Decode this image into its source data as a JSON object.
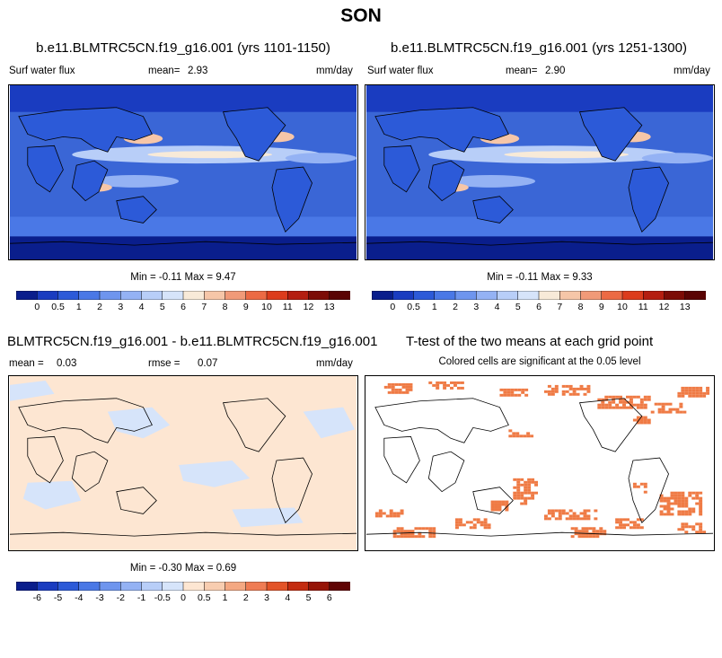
{
  "title": "SON",
  "panels": [
    {
      "title": "b.e11.BLMTRC5CN.f19_g16.001 (yrs 1101-1150)",
      "left_label": "Surf water flux",
      "mean_label": "mean=",
      "mean_value": "2.93",
      "units": "mm/day",
      "minmax": "Min = -0.11 Max = 9.47"
    },
    {
      "title": "b.e11.BLMTRC5CN.f19_g16.001 (yrs 1251-1300)",
      "left_label": "Surf water flux",
      "mean_label": "mean=",
      "mean_value": "2.90",
      "units": "mm/day",
      "minmax": "Min = -0.11 Max = 9.33"
    },
    {
      "title": "BLMTRC5CN.f19_g16.001 - b.e11.BLMTRC5CN.f19_g16.001",
      "mean_label": "mean =",
      "mean_value": "0.03",
      "rmse_label": "rmse =",
      "rmse_value": "0.07",
      "units": "mm/day",
      "minmax": "Min = -0.30 Max = 0.69"
    },
    {
      "title": "T-test of the two means at each grid point",
      "subtitle": "Colored cells are significant at the 0.05 level"
    }
  ],
  "chart_data": [
    {
      "type": "heatmap",
      "title": "b.e11.BLMTRC5CN.f19_g16.001 (yrs 1101-1150)",
      "variable": "Surf water flux",
      "units": "mm/day",
      "mean": 2.93,
      "min": -0.11,
      "max": 9.47,
      "colorbar_levels": [
        0,
        0.5,
        1,
        2,
        3,
        4,
        5,
        6,
        7,
        8,
        9,
        10,
        11,
        12,
        13
      ]
    },
    {
      "type": "heatmap",
      "title": "b.e11.BLMTRC5CN.f19_g16.001 (yrs 1251-1300)",
      "variable": "Surf water flux",
      "units": "mm/day",
      "mean": 2.9,
      "min": -0.11,
      "max": 9.33,
      "colorbar_levels": [
        0,
        0.5,
        1,
        2,
        3,
        4,
        5,
        6,
        7,
        8,
        9,
        10,
        11,
        12,
        13
      ]
    },
    {
      "type": "heatmap",
      "title": "BLMTRC5CN.f19_g16.001 - b.e11.BLMTRC5CN.f19_g16.001",
      "units": "mm/day",
      "mean": 0.03,
      "rmse": 0.07,
      "min": -0.3,
      "max": 0.69,
      "colorbar_levels": [
        -6,
        -5,
        -4,
        -3,
        -2,
        -1,
        -0.5,
        0,
        0.5,
        1,
        2,
        3,
        4,
        5,
        6
      ]
    },
    {
      "type": "heatmap",
      "title": "T-test of the two means at each grid point",
      "subtitle": "Colored cells are significant at the 0.05 level"
    }
  ],
  "colors": {
    "abs_scale": [
      "#0a1e8c",
      "#1a3cc0",
      "#2c5ad8",
      "#4a78e6",
      "#6e95ee",
      "#94b2f4",
      "#b8cef8",
      "#d6e4fa",
      "#f8ead8",
      "#f6c6a8",
      "#f19a78",
      "#ec6a44",
      "#dc3c1c",
      "#b41e10",
      "#7c0c06",
      "#5a0404"
    ],
    "diff_scale": [
      "#0a1e8c",
      "#1a3cc0",
      "#2c5ad8",
      "#4a78e6",
      "#6e95ee",
      "#94b2f4",
      "#b8cef8",
      "#d6e4fa",
      "#fde6d2",
      "#f8cdb0",
      "#f4a882",
      "#ef7c54",
      "#e35428",
      "#c42c10",
      "#961406",
      "#600404"
    ],
    "sig": "#ef7a44"
  }
}
